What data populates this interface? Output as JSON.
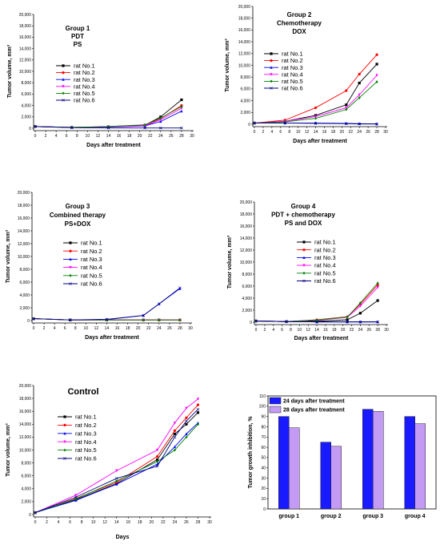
{
  "series_colors": [
    "#000000",
    "#ff0000",
    "#0000ff",
    "#ff00ff",
    "#008000",
    "#000080"
  ],
  "bar_colors": [
    "#1a1aff",
    "#c39bf5"
  ],
  "chart_data": [
    {
      "type": "line",
      "title": [
        "Group 1",
        "PDT",
        "PS"
      ],
      "xlabel": "Days after treatment",
      "ylabel": "Tumor volume, mm³",
      "xlim": [
        0,
        30
      ],
      "ylim": [
        0,
        20000
      ],
      "xticks": [
        0,
        2,
        4,
        6,
        8,
        10,
        12,
        14,
        16,
        18,
        20,
        22,
        24,
        26,
        28,
        30
      ],
      "yticks": [
        0,
        2000,
        4000,
        6000,
        8000,
        10000,
        12000,
        14000,
        16000,
        18000,
        20000
      ],
      "ytick_labels": [
        "0",
        "2,000",
        "4,000",
        "6,000",
        "8,000",
        "10,000",
        "12,000",
        "14,000",
        "16,000",
        "18,000",
        "20,000"
      ],
      "x": [
        0,
        7,
        14,
        21,
        24,
        28
      ],
      "series": [
        {
          "name": "rat No.1",
          "values": [
            300,
            150,
            250,
            550,
            2000,
            5000
          ]
        },
        {
          "name": "rat No.2",
          "values": [
            300,
            150,
            300,
            550,
            1700,
            4000
          ]
        },
        {
          "name": "rat No.3",
          "values": [
            300,
            150,
            200,
            400,
            1200,
            3000
          ]
        },
        {
          "name": "rat No.4",
          "values": [
            300,
            150,
            250,
            450,
            1500,
            3500
          ]
        },
        {
          "name": "rat No.5",
          "values": [
            300,
            150,
            300,
            600,
            1800,
            3800
          ]
        },
        {
          "name": "rat No.6",
          "values": [
            300,
            100,
            50,
            50,
            50,
            50
          ]
        }
      ]
    },
    {
      "type": "line",
      "title": [
        "Group 2",
        "Chemotherapy",
        "DOX"
      ],
      "xlabel": "Days after treatment",
      "ylabel": "Tumor volume, mm³",
      "xlim": [
        0,
        30
      ],
      "ylim": [
        0,
        20000
      ],
      "xticks": [
        0,
        2,
        4,
        6,
        8,
        10,
        12,
        14,
        16,
        18,
        20,
        22,
        24,
        26,
        28,
        30
      ],
      "yticks": [
        0,
        2000,
        4000,
        6000,
        8000,
        10000,
        12000,
        14000,
        16000,
        18000,
        20000
      ],
      "ytick_labels": [
        "0",
        "2,000",
        "4,000",
        "6,000",
        "8,000",
        "10,000",
        "12,000",
        "14,000",
        "16,000",
        "18,000",
        "20,000"
      ],
      "x": [
        0,
        7,
        14,
        21,
        24,
        28
      ],
      "series": [
        {
          "name": "rat No.1",
          "values": [
            200,
            500,
            1500,
            3300,
            7000,
            10200
          ]
        },
        {
          "name": "rat No.2",
          "values": [
            200,
            700,
            2800,
            5700,
            8500,
            11800
          ]
        },
        {
          "name": "rat No.3",
          "values": [
            200,
            200,
            200,
            150,
            100,
            50
          ]
        },
        {
          "name": "rat No.4",
          "values": [
            200,
            500,
            1300,
            2800,
            5000,
            8300
          ]
        },
        {
          "name": "rat No.5",
          "values": [
            200,
            400,
            1000,
            2500,
            4500,
            7200
          ]
        },
        {
          "name": "rat No.6",
          "values": [
            200,
            200,
            150,
            100,
            50,
            50
          ]
        }
      ]
    },
    {
      "type": "line",
      "title": [
        "Group 3",
        "Combined therapy",
        "PS+DOX"
      ],
      "xlabel": "Days after treatment",
      "ylabel": "Tumor volume, mm³",
      "xlim": [
        0,
        30
      ],
      "ylim": [
        0,
        20000
      ],
      "xticks": [
        0,
        2,
        4,
        6,
        8,
        10,
        12,
        14,
        16,
        18,
        20,
        22,
        24,
        26,
        28,
        30
      ],
      "yticks": [
        0,
        2000,
        4000,
        6000,
        8000,
        10000,
        12000,
        14000,
        16000,
        18000,
        20000
      ],
      "ytick_labels": [
        "0",
        "2,000",
        "4,000",
        "6,000",
        "8,000",
        "10,000",
        "12,000",
        "14,000",
        "16,000",
        "18,000",
        "20,000"
      ],
      "x": [
        0,
        7,
        14,
        21,
        24,
        28
      ],
      "series": [
        {
          "name": "rat No.1",
          "values": [
            300,
            100,
            100,
            100,
            100,
            100
          ]
        },
        {
          "name": "rat No.2",
          "values": [
            300,
            100,
            100,
            100,
            100,
            100
          ]
        },
        {
          "name": "rat No.3",
          "values": [
            300,
            100,
            150,
            800,
            2600,
            5000
          ]
        },
        {
          "name": "rat No.4",
          "values": [
            300,
            100,
            100,
            100,
            100,
            100
          ]
        },
        {
          "name": "rat No.5",
          "values": [
            300,
            100,
            100,
            100,
            100,
            100
          ]
        },
        {
          "name": "rat No.6",
          "values": [
            300,
            100,
            200,
            800,
            2600,
            5100
          ]
        }
      ]
    },
    {
      "type": "line",
      "title": [
        "Group 4",
        "PDT + chemotherapy",
        "PS and DOX"
      ],
      "xlabel": "Days after treatment",
      "ylabel": "Tumor volume, mm³",
      "xlim": [
        0,
        30
      ],
      "ylim": [
        0,
        20000
      ],
      "xticks": [
        0,
        2,
        4,
        6,
        8,
        10,
        12,
        14,
        16,
        18,
        20,
        22,
        24,
        26,
        28,
        30
      ],
      "yticks": [
        0,
        2000,
        4000,
        6000,
        8000,
        10000,
        12000,
        14000,
        16000,
        18000,
        20000
      ],
      "ytick_labels": [
        "0",
        "2,000",
        "4,000",
        "6,000",
        "8,000",
        "10,000",
        "12,000",
        "14,000",
        "16,000",
        "18,000",
        "20,000"
      ],
      "x": [
        0,
        7,
        14,
        21,
        24,
        28
      ],
      "series": [
        {
          "name": "rat No.1",
          "values": [
            200,
            100,
            150,
            400,
            1500,
            3600
          ]
        },
        {
          "name": "rat No.2",
          "values": [
            200,
            100,
            400,
            900,
            3000,
            6200
          ]
        },
        {
          "name": "rat No.3",
          "values": [
            200,
            100,
            50,
            50,
            50,
            50
          ]
        },
        {
          "name": "rat No.4",
          "values": [
            200,
            100,
            300,
            800,
            2700,
            5800
          ]
        },
        {
          "name": "rat No.5",
          "values": [
            200,
            100,
            350,
            850,
            3200,
            6500
          ]
        },
        {
          "name": "rat No.6",
          "values": [
            200,
            100,
            50,
            50,
            50,
            50
          ]
        }
      ]
    },
    {
      "type": "line",
      "title": [
        "Control"
      ],
      "xlabel": "Days",
      "ylabel": "Tumor volume, mm³",
      "xlim": [
        0,
        30
      ],
      "ylim": [
        0,
        20000
      ],
      "xticks": [
        0,
        2,
        4,
        6,
        8,
        10,
        12,
        14,
        16,
        18,
        20,
        22,
        24,
        26,
        28,
        30
      ],
      "yticks": [
        0,
        2000,
        4000,
        6000,
        8000,
        10000,
        12000,
        14000,
        16000,
        18000,
        20000
      ],
      "ytick_labels": [
        "0",
        "2,000",
        "4,000",
        "6,000",
        "8,000",
        "10,000",
        "12,000",
        "14,000",
        "16,000",
        "18,000",
        "20,000"
      ],
      "x": [
        0,
        7,
        14,
        21,
        24,
        26,
        28
      ],
      "series": [
        {
          "name": "rat No.1",
          "values": [
            300,
            2300,
            4800,
            8500,
            12500,
            14000,
            15800
          ]
        },
        {
          "name": "rat No.2",
          "values": [
            300,
            2500,
            5000,
            9000,
            13000,
            15000,
            17000
          ]
        },
        {
          "name": "rat No.3",
          "values": [
            300,
            2200,
            4700,
            7800,
            10500,
            12500,
            14200
          ]
        },
        {
          "name": "rat No.4",
          "values": [
            300,
            3000,
            6800,
            10000,
            14200,
            16500,
            17900
          ]
        },
        {
          "name": "rat No.5",
          "values": [
            300,
            2400,
            5200,
            8200,
            10000,
            12000,
            14000
          ]
        },
        {
          "name": "rat No.6",
          "values": [
            300,
            2700,
            5600,
            7500,
            12000,
            14500,
            16300
          ]
        }
      ]
    },
    {
      "type": "bar",
      "categories": [
        "group 1",
        "group 2",
        "group 3",
        "group 4"
      ],
      "ylabel": "Tumor growth inhibition, %",
      "ylim": [
        0,
        110
      ],
      "yticks": [
        0,
        10,
        20,
        30,
        40,
        50,
        60,
        70,
        80,
        90,
        100,
        110
      ],
      "series": [
        {
          "name": "24 days after treatment",
          "values": [
            90,
            65,
            97,
            90
          ]
        },
        {
          "name": "28 days after treatment",
          "values": [
            79,
            61,
            95,
            83
          ]
        }
      ]
    }
  ]
}
